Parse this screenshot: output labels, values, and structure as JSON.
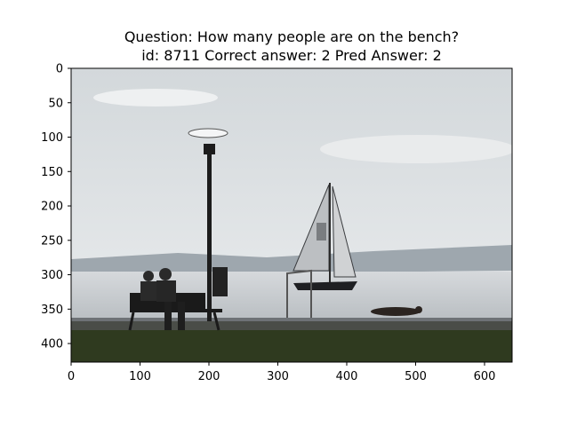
{
  "chart_data": {
    "type": "image",
    "title_line1": "Question: How many people are on the bench?",
    "title_line2": "id: 8711 Correct answer: 2 Pred Answer: 2",
    "x_ticks": [
      0,
      100,
      200,
      300,
      400,
      500,
      600
    ],
    "y_ticks": [
      0,
      50,
      100,
      150,
      200,
      250,
      300,
      350,
      400
    ],
    "xlim": [
      0,
      640
    ],
    "ylim": [
      427,
      0
    ],
    "scene": {
      "subject": "two people sitting on a park bench by a lake",
      "sky_color": "#dfe3e5",
      "water_color": "#c9ced2",
      "grass_color": "#2f3a1f"
    }
  }
}
